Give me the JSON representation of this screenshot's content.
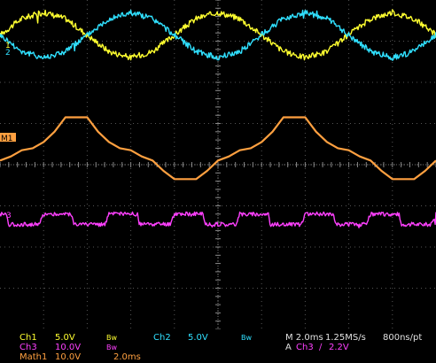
{
  "chart_data": {
    "type": "line",
    "title": "",
    "xlabel": "",
    "ylabel": "",
    "grid": true,
    "xlim": [
      -10,
      10
    ],
    "ylim": [
      -4,
      4
    ],
    "series": [
      {
        "name": "1",
        "color": "#ffff30",
        "x": [
          -10.0,
          -9.0,
          -8.0,
          -7.0,
          -6.0,
          -5.0,
          -4.0,
          -3.0,
          -2.0,
          -1.0,
          0.0,
          1.0,
          2.0,
          3.0,
          4.0,
          5.0,
          6.0,
          7.0,
          8.0,
          9.0,
          10.0
        ],
        "y": [
          3.15,
          3.55,
          3.7,
          3.55,
          3.15,
          2.75,
          2.6,
          2.75,
          3.15,
          3.55,
          3.7,
          3.55,
          3.15,
          2.75,
          2.6,
          2.75,
          3.15,
          3.55,
          3.7,
          3.55,
          3.15
        ]
      },
      {
        "name": "2",
        "color": "#30e0ff",
        "x": [
          -10.0,
          -9.0,
          -8.0,
          -7.0,
          -6.0,
          -5.0,
          -4.0,
          -3.0,
          -2.0,
          -1.0,
          0.0,
          1.0,
          2.0,
          3.0,
          4.0,
          5.0,
          6.0,
          7.0,
          8.0,
          9.0,
          10.0
        ],
        "y": [
          3.15,
          2.75,
          2.6,
          2.75,
          3.15,
          3.55,
          3.7,
          3.55,
          3.15,
          2.75,
          2.6,
          2.75,
          3.15,
          3.55,
          3.7,
          3.55,
          3.15,
          2.75,
          2.6,
          2.75,
          3.15
        ]
      },
      {
        "name": "M1",
        "color": "#ffa040",
        "x": [
          -10.0,
          -9.5,
          -9.0,
          -8.5,
          -8.0,
          -7.5,
          -7.0,
          -6.5,
          -6.0,
          -5.5,
          -5.0,
          -4.5,
          -4.0,
          -3.5,
          -3.0,
          -2.5,
          -2.0,
          -1.5,
          -1.0,
          -0.5,
          0.0,
          0.5,
          1.0,
          1.5,
          2.0,
          2.5,
          3.0,
          3.5,
          4.0,
          4.5,
          5.0,
          5.5,
          6.0,
          6.5,
          7.0,
          7.5,
          8.0,
          8.5,
          9.0,
          9.5,
          10.0
        ],
        "y": [
          0.1,
          0.2,
          0.35,
          0.4,
          0.55,
          0.8,
          1.15,
          1.15,
          1.15,
          0.8,
          0.55,
          0.4,
          0.35,
          0.2,
          0.1,
          -0.15,
          -0.35,
          -0.35,
          -0.35,
          -0.15,
          0.1,
          0.2,
          0.35,
          0.4,
          0.55,
          0.8,
          1.15,
          1.15,
          1.15,
          0.8,
          0.55,
          0.4,
          0.35,
          0.2,
          0.1,
          -0.15,
          -0.35,
          -0.35,
          -0.35,
          -0.15,
          0.1
        ]
      },
      {
        "name": "3",
        "color": "#ff40ff",
        "x": [
          -10.0,
          -9.7,
          -9.6,
          -8.2,
          -8.0,
          -6.7,
          -6.6,
          -5.2,
          -5.0,
          -3.7,
          -3.6,
          -2.2,
          -2.0,
          -0.7,
          -0.6,
          0.8,
          1.0,
          2.3,
          2.4,
          3.8,
          4.0,
          5.3,
          5.4,
          6.8,
          7.0,
          8.3,
          8.4,
          9.8,
          10.0
        ],
        "y": [
          -1.2,
          -1.2,
          -1.45,
          -1.45,
          -1.2,
          -1.2,
          -1.45,
          -1.45,
          -1.2,
          -1.2,
          -1.45,
          -1.45,
          -1.2,
          -1.2,
          -1.45,
          -1.45,
          -1.2,
          -1.2,
          -1.45,
          -1.45,
          -1.2,
          -1.2,
          -1.45,
          -1.45,
          -1.2,
          -1.2,
          -1.45,
          -1.45,
          -1.2
        ]
      }
    ]
  },
  "markers": {
    "ch1": "1",
    "ch2": "2",
    "math1": "M1",
    "ch3": "3"
  },
  "status": {
    "ch1_label": "Ch1",
    "ch1_scale": "5.0V",
    "ch1_bw": "Bw",
    "ch2_label": "Ch2",
    "ch2_scale": "5.0V",
    "ch2_bw": "Bw",
    "ch3_label": "Ch3",
    "ch3_scale": "10.0V",
    "ch3_bw": "Bw",
    "math_label": "Math1",
    "math_scale": "10.0V",
    "math_time": "2.0ms",
    "timebase": "M 2.0ms",
    "sample_rate": "1.25MS/s",
    "record": "800ns/pt",
    "trigger_mode": "A",
    "trigger_source": "Ch3",
    "trigger_slope": "∕",
    "trigger_level": "2.2V"
  }
}
